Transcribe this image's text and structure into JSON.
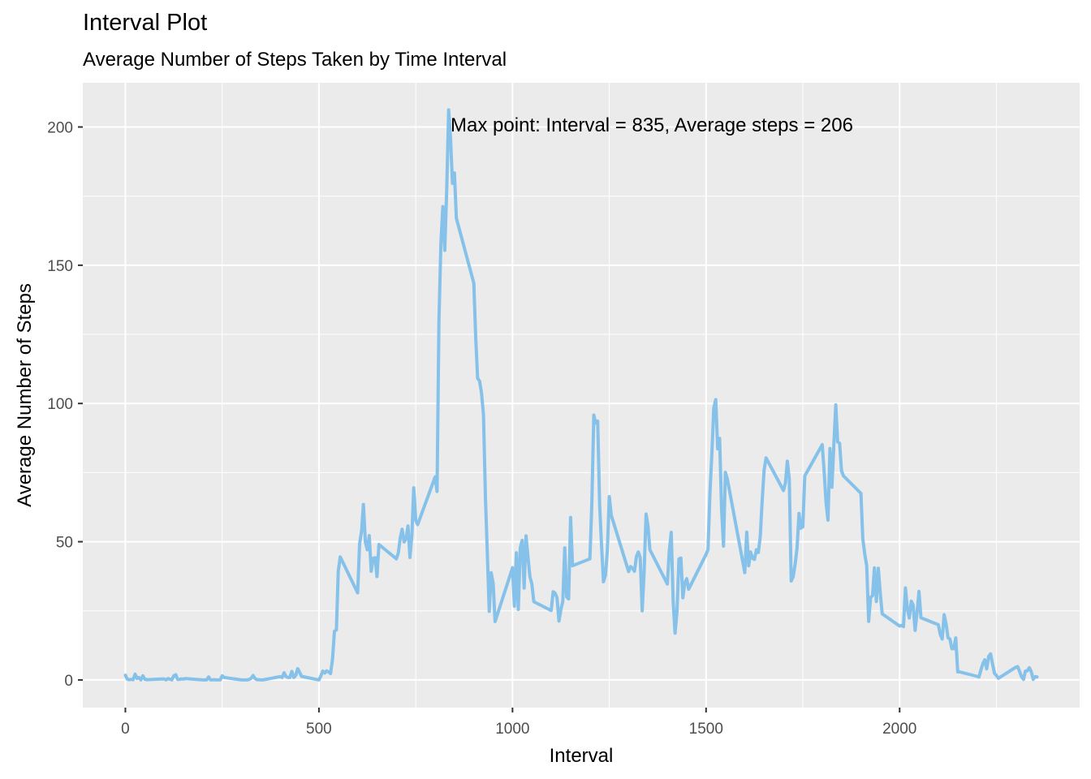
{
  "chart_data": {
    "type": "line",
    "title": "Interval Plot",
    "subtitle": "Average Number of Steps Taken by Time Interval",
    "xlabel": "Interval",
    "ylabel": "Average Number of Steps",
    "xlim": [
      -110,
      2465
    ],
    "ylim": [
      -10,
      216
    ],
    "x_ticks": [
      0,
      500,
      1000,
      1500,
      2000
    ],
    "y_ticks": [
      0,
      50,
      100,
      150,
      200
    ],
    "x_tick_labels": [
      "0",
      "500",
      "1000",
      "1500",
      "2000"
    ],
    "y_tick_labels": [
      "0",
      "50",
      "100",
      "150",
      "200"
    ],
    "grid": true,
    "background": "#ebebeb",
    "line_color": "#85c1e9",
    "annotation": {
      "text": "Max point: Interval = 835, Average steps = 206",
      "x": 840,
      "y": 201
    },
    "series": [
      {
        "x": [
          0,
          5,
          10,
          15,
          20,
          25,
          30,
          35,
          40,
          45,
          50,
          55,
          100,
          105,
          110,
          115,
          120,
          125,
          130,
          135,
          140,
          145,
          150,
          155,
          200,
          205,
          210,
          215,
          220,
          225,
          230,
          235,
          240,
          245,
          250,
          255,
          300,
          305,
          310,
          315,
          320,
          325,
          330,
          335,
          340,
          345,
          350,
          355,
          400,
          405,
          410,
          415,
          420,
          425,
          430,
          435,
          440,
          445,
          450,
          455,
          500,
          505,
          510,
          515,
          520,
          525,
          530,
          535,
          540,
          545,
          550,
          555,
          600,
          605,
          610,
          615,
          620,
          625,
          630,
          635,
          640,
          645,
          650,
          655,
          700,
          705,
          710,
          715,
          720,
          725,
          730,
          735,
          740,
          745,
          750,
          755,
          800,
          805,
          810,
          815,
          820,
          825,
          830,
          835,
          840,
          845,
          850,
          855,
          900,
          905,
          910,
          915,
          920,
          925,
          930,
          935,
          940,
          945,
          950,
          955,
          1000,
          1005,
          1010,
          1015,
          1020,
          1025,
          1030,
          1035,
          1040,
          1045,
          1050,
          1055,
          1100,
          1105,
          1110,
          1115,
          1120,
          1125,
          1130,
          1135,
          1140,
          1145,
          1150,
          1155,
          1200,
          1205,
          1210,
          1215,
          1220,
          1225,
          1230,
          1235,
          1240,
          1245,
          1250,
          1255,
          1300,
          1305,
          1310,
          1315,
          1320,
          1325,
          1330,
          1335,
          1340,
          1345,
          1350,
          1355,
          1400,
          1405,
          1410,
          1415,
          1420,
          1425,
          1430,
          1435,
          1440,
          1445,
          1450,
          1455,
          1500,
          1505,
          1510,
          1515,
          1520,
          1525,
          1530,
          1535,
          1540,
          1545,
          1550,
          1555,
          1600,
          1605,
          1610,
          1615,
          1620,
          1625,
          1630,
          1635,
          1640,
          1645,
          1650,
          1655,
          1700,
          1705,
          1710,
          1715,
          1720,
          1725,
          1730,
          1735,
          1740,
          1745,
          1750,
          1755,
          1800,
          1805,
          1810,
          1815,
          1820,
          1825,
          1830,
          1835,
          1840,
          1845,
          1850,
          1855,
          1900,
          1905,
          1910,
          1915,
          1920,
          1925,
          1930,
          1935,
          1940,
          1945,
          1950,
          1955,
          2000,
          2005,
          2010,
          2015,
          2020,
          2025,
          2030,
          2035,
          2040,
          2045,
          2050,
          2055,
          2100,
          2105,
          2110,
          2115,
          2120,
          2125,
          2130,
          2135,
          2140,
          2145,
          2150,
          2155,
          2200,
          2205,
          2210,
          2215,
          2220,
          2225,
          2230,
          2235,
          2240,
          2245,
          2250,
          2255,
          2300,
          2305,
          2310,
          2315,
          2320,
          2325,
          2330,
          2335,
          2340,
          2345,
          2350,
          2355
        ],
        "values": [
          1.7,
          0.3,
          0.1,
          0.2,
          0.1,
          2.1,
          0.5,
          0.9,
          0,
          1.5,
          0.3,
          0.1,
          0.4,
          0,
          0.5,
          0.3,
          0,
          1.5,
          1.9,
          0.2,
          0.2,
          0.4,
          0.3,
          0.5,
          0,
          0,
          0,
          1.1,
          0,
          0,
          0.1,
          0,
          0,
          0,
          1.5,
          0.9,
          0,
          0,
          0,
          0,
          0.2,
          0.6,
          1.6,
          0.5,
          0.1,
          0.1,
          0,
          0,
          1.2,
          0.9,
          2.6,
          1.2,
          0.9,
          0.9,
          3.1,
          0.9,
          1.6,
          4.1,
          2.8,
          1.3,
          0,
          1.5,
          3.2,
          2.5,
          3.3,
          2.9,
          2.3,
          7.4,
          17.6,
          18.1,
          39.3,
          44.5,
          31.5,
          49.3,
          53.8,
          63.5,
          49.9,
          47.1,
          52.2,
          39.3,
          44.0,
          44.2,
          37.4,
          49.0,
          43.8,
          46.0,
          51.4,
          54.5,
          49.9,
          51.0,
          55.7,
          44.3,
          52.3,
          69.5,
          57.8,
          56.2,
          73.4,
          68.2,
          129.4,
          157.5,
          171.2,
          155.4,
          177.3,
          206.2,
          195.9,
          179.6,
          183.4,
          167.0,
          143.5,
          124.0,
          109.1,
          108.1,
          103.7,
          95.9,
          66.2,
          45.2,
          24.8,
          38.8,
          34.9,
          21.1,
          40.6,
          26.7,
          46.0,
          25.5,
          47.8,
          50.5,
          33.2,
          52.1,
          44.5,
          37.4,
          34.7,
          28.3,
          25.1,
          31.9,
          31.4,
          29.7,
          21.3,
          25.5,
          28.4,
          47.8,
          30.0,
          29.3,
          58.8,
          41.3,
          43.8,
          63.9,
          95.8,
          92.9,
          93.6,
          63.2,
          49.0,
          35.5,
          37.8,
          46.7,
          66.3,
          59.6,
          39.2,
          41.0,
          40.4,
          39.3,
          44.6,
          46.3,
          44.2,
          25.0,
          39.2,
          60.0,
          55.6,
          47.1,
          34.7,
          46.7,
          53.4,
          28.2,
          16.9,
          24.9,
          43.8,
          44.1,
          29.7,
          35.1,
          36.6,
          32.8,
          45.4,
          47.2,
          67.8,
          82.2,
          98.3,
          101.4,
          83.6,
          87.4,
          62.0,
          48.4,
          75.1,
          72.7,
          38.8,
          53.5,
          41.3,
          46.3,
          44.0,
          43.6,
          47.1,
          46.1,
          52.0,
          64.7,
          75.9,
          80.3,
          68.5,
          71.3,
          79.1,
          72.7,
          35.8,
          37.3,
          41.8,
          47.8,
          60.2,
          54.9,
          55.4,
          73.8,
          85.1,
          75.2,
          64.3,
          57.8,
          83.7,
          69.7,
          85.0,
          99.5,
          86.1,
          85.6,
          75.6,
          73.8,
          67.5,
          51.0,
          45.5,
          41.3,
          21.2,
          29.9,
          30.5,
          40.5,
          28.4,
          40.4,
          31.4,
          23.9,
          19.5,
          19.7,
          19.3,
          33.3,
          25.7,
          22.4,
          28.5,
          27.1,
          17.9,
          24.4,
          32.0,
          22.5,
          20.0,
          16.5,
          14.8,
          23.6,
          20.2,
          15.2,
          14.8,
          11.3,
          11.3,
          15.2,
          2.9,
          2.9,
          1.3,
          1.1,
          3.6,
          5.9,
          7.3,
          4.0,
          8.5,
          9.4,
          5.8,
          2.4,
          1.6,
          0.6,
          4.6,
          4.8,
          3.0,
          1.1,
          0.2,
          3.2,
          3.3,
          4.4,
          3.0,
          0.2,
          1.2,
          1.1
        ]
      }
    ]
  }
}
